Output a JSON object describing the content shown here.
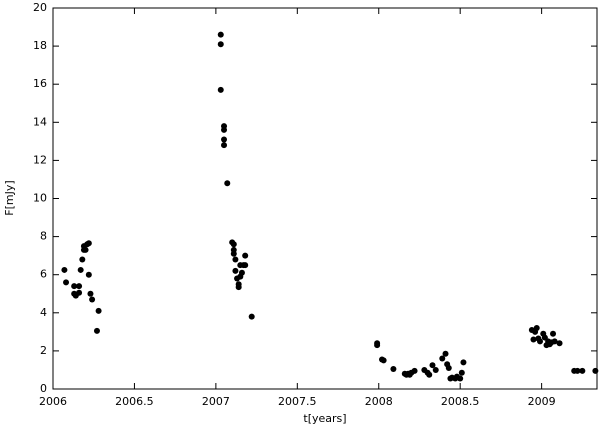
{
  "chart_data": {
    "type": "scatter",
    "x_label": "t[years]",
    "y_label": "F[mJy]",
    "color": "#000000",
    "xlim": [
      2006,
      2009.34
    ],
    "ylim": [
      0,
      20
    ],
    "xticks": [
      2006,
      2006.5,
      2007,
      2007.5,
      2008,
      2008.5,
      2009
    ],
    "yticks": [
      0,
      2,
      4,
      6,
      8,
      10,
      12,
      14,
      16,
      18,
      20
    ],
    "x": [
      2006.07,
      2006.08,
      2006.13,
      2006.13,
      2006.14,
      2006.16,
      2006.16,
      2006.17,
      2006.18,
      2006.19,
      2006.19,
      2006.2,
      2006.21,
      2006.22,
      2006.22,
      2006.23,
      2006.24,
      2006.27,
      2006.28,
      2007.03,
      2007.03,
      2007.03,
      2007.05,
      2007.05,
      2007.05,
      2007.05,
      2007.07,
      2007.1,
      2007.11,
      2007.11,
      2007.11,
      2007.12,
      2007.12,
      2007.13,
      2007.14,
      2007.14,
      2007.15,
      2007.15,
      2007.16,
      2007.17,
      2007.18,
      2007.18,
      2007.22,
      2007.99,
      2007.99,
      2008.02,
      2008.03,
      2008.09,
      2008.16,
      2008.17,
      2008.18,
      2008.19,
      2008.2,
      2008.22,
      2008.28,
      2008.3,
      2008.31,
      2008.33,
      2008.35,
      2008.39,
      2008.41,
      2008.42,
      2008.43,
      2008.44,
      2008.45,
      2008.47,
      2008.48,
      2008.5,
      2008.51,
      2008.52,
      2008.94,
      2008.95,
      2008.96,
      2008.97,
      2008.98,
      2008.99,
      2009.01,
      2009.02,
      2009.03,
      2009.04,
      2009.05,
      2009.06,
      2009.07,
      2009.08,
      2009.11,
      2009.2,
      2009.22,
      2009.25,
      2009.33
    ],
    "y": [
      6.25,
      5.6,
      5.4,
      5.0,
      4.9,
      5.4,
      5.05,
      6.25,
      6.8,
      7.3,
      7.5,
      7.3,
      7.6,
      7.65,
      6.0,
      5.0,
      4.7,
      3.05,
      4.1,
      18.6,
      18.1,
      15.7,
      13.8,
      13.6,
      13.1,
      12.8,
      10.8,
      7.7,
      7.6,
      7.3,
      7.1,
      6.8,
      6.2,
      5.8,
      5.5,
      5.35,
      5.9,
      6.5,
      6.1,
      6.5,
      7.0,
      6.5,
      3.8,
      2.4,
      2.3,
      1.55,
      1.5,
      1.05,
      0.8,
      0.75,
      0.8,
      0.75,
      0.85,
      0.95,
      1.0,
      0.85,
      0.75,
      1.25,
      1.0,
      1.6,
      1.85,
      1.3,
      1.1,
      0.55,
      0.6,
      0.55,
      0.65,
      0.55,
      0.85,
      1.4,
      3.1,
      2.6,
      3.0,
      3.2,
      2.65,
      2.5,
      2.9,
      2.7,
      2.3,
      2.5,
      2.35,
      2.45,
      2.9,
      2.5,
      2.4,
      0.95,
      0.95,
      0.95,
      0.95
    ]
  }
}
